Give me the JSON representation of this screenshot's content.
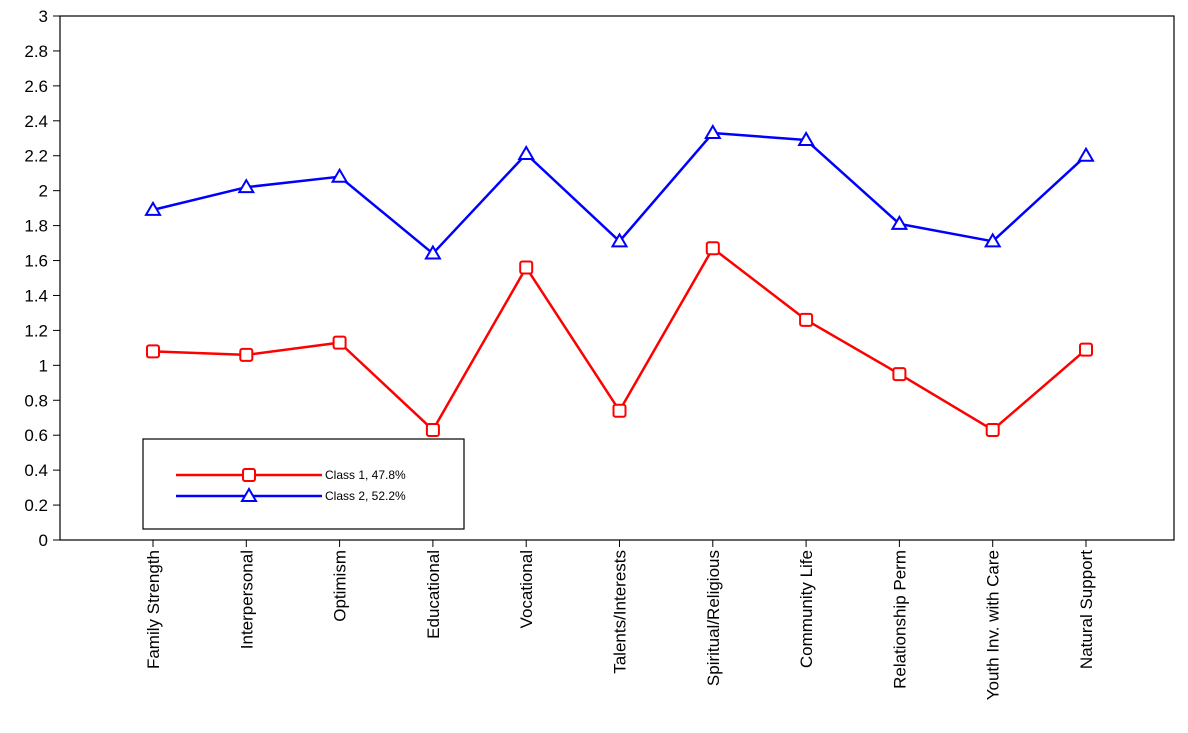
{
  "chart_data": {
    "type": "line",
    "categories": [
      "Family Strength",
      "Interpersonal",
      "Optimism",
      "Educational",
      "Vocational",
      "Talents/Interests",
      "Spiritual/Religious",
      "Community Life",
      "Relationship Perm",
      "Youth Inv. with Care",
      "Natural Support"
    ],
    "series": [
      {
        "name": "Class 1, 47.8%",
        "color": "#ff0000",
        "marker": "square",
        "values": [
          1.08,
          1.06,
          1.13,
          0.63,
          1.56,
          0.74,
          1.67,
          1.26,
          0.95,
          0.63,
          1.09
        ]
      },
      {
        "name": "Class 2, 52.2%",
        "color": "#0000ff",
        "marker": "triangle",
        "values": [
          1.89,
          2.02,
          2.08,
          1.64,
          2.21,
          1.71,
          2.33,
          2.29,
          1.81,
          1.71,
          2.2
        ]
      }
    ],
    "ylim": [
      0,
      3
    ],
    "yticks": [
      "0",
      "0.2",
      "0.4",
      "0.6",
      "0.8",
      "1",
      "1.2",
      "1.4",
      "1.6",
      "1.8",
      "2",
      "2.2",
      "2.4",
      "2.6",
      "2.8",
      "3"
    ],
    "title": "",
    "xlabel": "",
    "ylabel": "",
    "grid": false,
    "legend_position": "bottom-left"
  }
}
